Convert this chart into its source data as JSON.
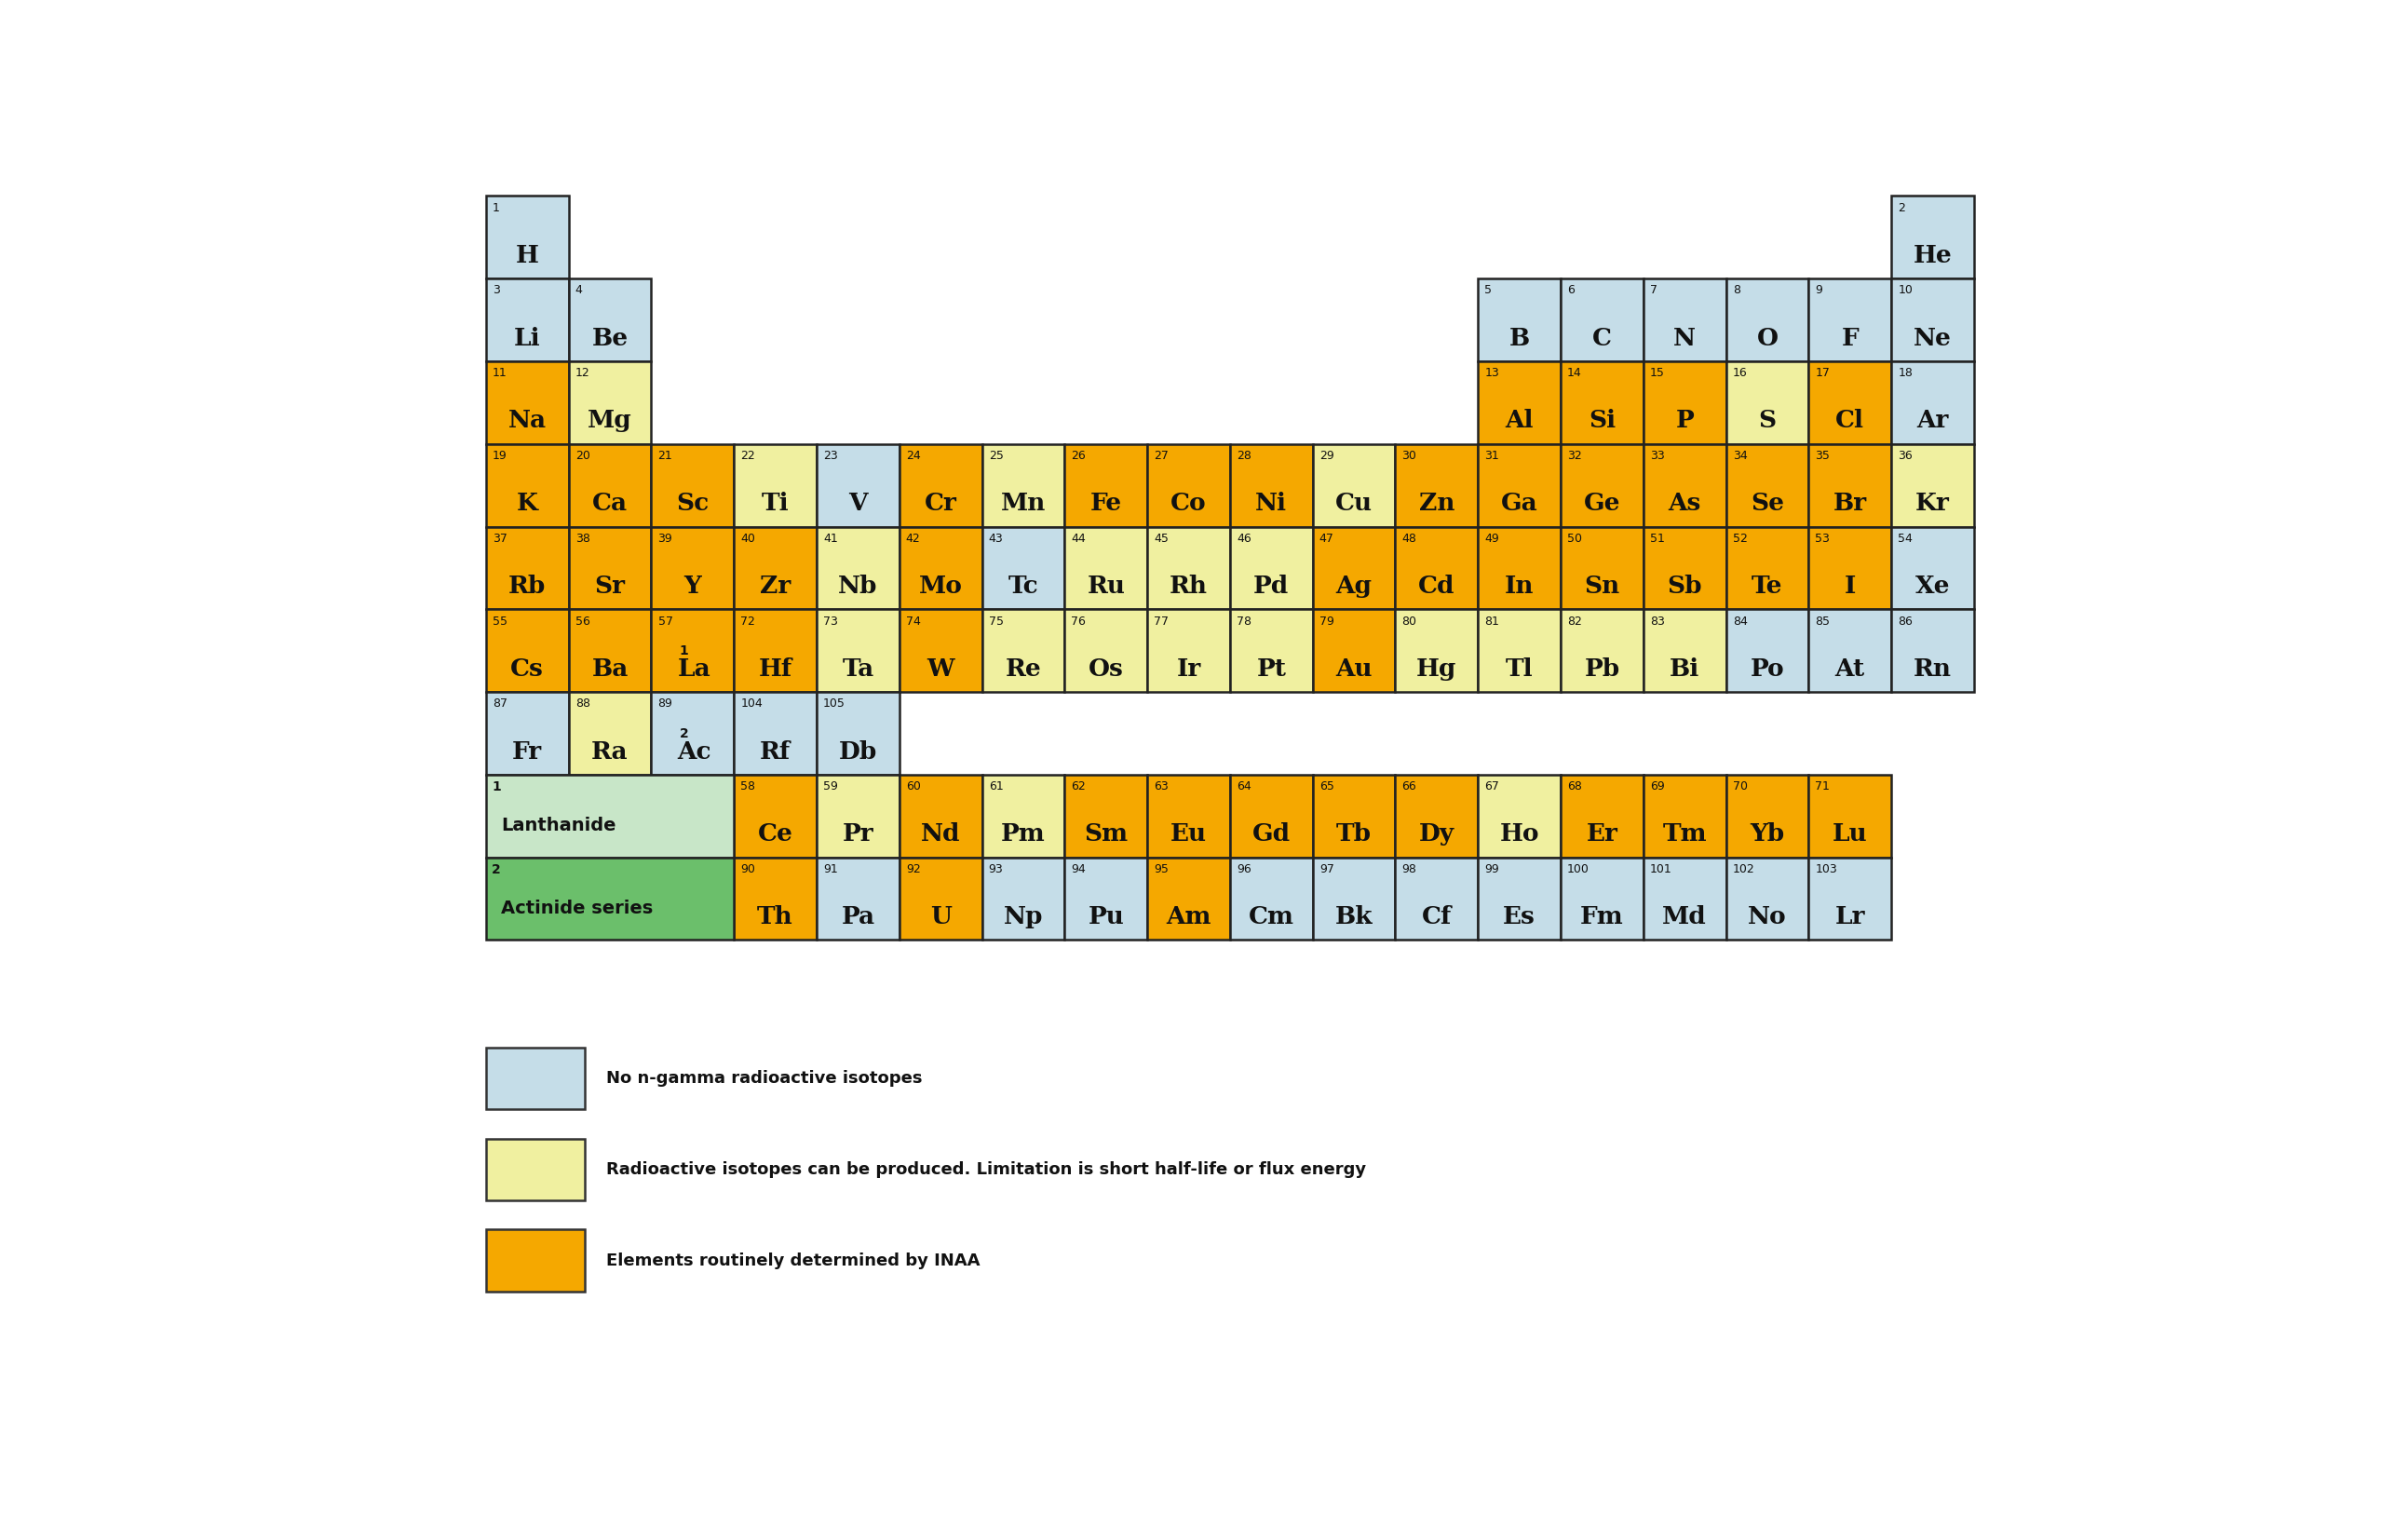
{
  "colors": {
    "blue": "#c5dde8",
    "light_yellow": "#f0f0a0",
    "orange": "#f5a800",
    "green_light": "#c8e6c8",
    "green_dark": "#6bbf6b",
    "white": "#ffffff",
    "border": "#333333"
  },
  "legend": [
    {
      "color_key": "blue",
      "text": "No n-gamma radioactive isotopes"
    },
    {
      "color_key": "light_yellow",
      "text": "Radioactive isotopes can be produced. Limitation is short half-life or flux energy"
    },
    {
      "color_key": "orange",
      "text": "Elements routinely determined by INAA"
    }
  ],
  "elements": [
    {
      "num": "1",
      "sym": "H",
      "row": 0,
      "col": 0,
      "color": "blue"
    },
    {
      "num": "2",
      "sym": "He",
      "row": 0,
      "col": 17,
      "color": "blue"
    },
    {
      "num": "3",
      "sym": "Li",
      "row": 1,
      "col": 0,
      "color": "blue"
    },
    {
      "num": "4",
      "sym": "Be",
      "row": 1,
      "col": 1,
      "color": "blue"
    },
    {
      "num": "5",
      "sym": "B",
      "row": 1,
      "col": 12,
      "color": "blue"
    },
    {
      "num": "6",
      "sym": "C",
      "row": 1,
      "col": 13,
      "color": "blue"
    },
    {
      "num": "7",
      "sym": "N",
      "row": 1,
      "col": 14,
      "color": "blue"
    },
    {
      "num": "8",
      "sym": "O",
      "row": 1,
      "col": 15,
      "color": "blue"
    },
    {
      "num": "9",
      "sym": "F",
      "row": 1,
      "col": 16,
      "color": "blue"
    },
    {
      "num": "10",
      "sym": "Ne",
      "row": 1,
      "col": 17,
      "color": "blue"
    },
    {
      "num": "11",
      "sym": "Na",
      "row": 2,
      "col": 0,
      "color": "orange"
    },
    {
      "num": "12",
      "sym": "Mg",
      "row": 2,
      "col": 1,
      "color": "light_yellow"
    },
    {
      "num": "13",
      "sym": "Al",
      "row": 2,
      "col": 12,
      "color": "orange"
    },
    {
      "num": "14",
      "sym": "Si",
      "row": 2,
      "col": 13,
      "color": "orange"
    },
    {
      "num": "15",
      "sym": "P",
      "row": 2,
      "col": 14,
      "color": "orange"
    },
    {
      "num": "16",
      "sym": "S",
      "row": 2,
      "col": 15,
      "color": "light_yellow"
    },
    {
      "num": "17",
      "sym": "Cl",
      "row": 2,
      "col": 16,
      "color": "orange"
    },
    {
      "num": "18",
      "sym": "Ar",
      "row": 2,
      "col": 17,
      "color": "blue"
    },
    {
      "num": "19",
      "sym": "K",
      "row": 3,
      "col": 0,
      "color": "orange"
    },
    {
      "num": "20",
      "sym": "Ca",
      "row": 3,
      "col": 1,
      "color": "orange"
    },
    {
      "num": "21",
      "sym": "Sc",
      "row": 3,
      "col": 2,
      "color": "orange"
    },
    {
      "num": "22",
      "sym": "Ti",
      "row": 3,
      "col": 3,
      "color": "light_yellow"
    },
    {
      "num": "23",
      "sym": "V",
      "row": 3,
      "col": 4,
      "color": "blue"
    },
    {
      "num": "24",
      "sym": "Cr",
      "row": 3,
      "col": 5,
      "color": "orange"
    },
    {
      "num": "25",
      "sym": "Mn",
      "row": 3,
      "col": 6,
      "color": "light_yellow"
    },
    {
      "num": "26",
      "sym": "Fe",
      "row": 3,
      "col": 7,
      "color": "orange"
    },
    {
      "num": "27",
      "sym": "Co",
      "row": 3,
      "col": 8,
      "color": "orange"
    },
    {
      "num": "28",
      "sym": "Ni",
      "row": 3,
      "col": 9,
      "color": "orange"
    },
    {
      "num": "29",
      "sym": "Cu",
      "row": 3,
      "col": 10,
      "color": "light_yellow"
    },
    {
      "num": "30",
      "sym": "Zn",
      "row": 3,
      "col": 11,
      "color": "orange"
    },
    {
      "num": "31",
      "sym": "Ga",
      "row": 3,
      "col": 12,
      "color": "orange"
    },
    {
      "num": "32",
      "sym": "Ge",
      "row": 3,
      "col": 13,
      "color": "orange"
    },
    {
      "num": "33",
      "sym": "As",
      "row": 3,
      "col": 14,
      "color": "orange"
    },
    {
      "num": "34",
      "sym": "Se",
      "row": 3,
      "col": 15,
      "color": "orange"
    },
    {
      "num": "35",
      "sym": "Br",
      "row": 3,
      "col": 16,
      "color": "orange"
    },
    {
      "num": "36",
      "sym": "Kr",
      "row": 3,
      "col": 17,
      "color": "light_yellow"
    },
    {
      "num": "37",
      "sym": "Rb",
      "row": 4,
      "col": 0,
      "color": "orange"
    },
    {
      "num": "38",
      "sym": "Sr",
      "row": 4,
      "col": 1,
      "color": "orange"
    },
    {
      "num": "39",
      "sym": "Y",
      "row": 4,
      "col": 2,
      "color": "orange"
    },
    {
      "num": "40",
      "sym": "Zr",
      "row": 4,
      "col": 3,
      "color": "orange"
    },
    {
      "num": "41",
      "sym": "Nb",
      "row": 4,
      "col": 4,
      "color": "light_yellow"
    },
    {
      "num": "42",
      "sym": "Mo",
      "row": 4,
      "col": 5,
      "color": "orange"
    },
    {
      "num": "43",
      "sym": "Tc",
      "row": 4,
      "col": 6,
      "color": "blue"
    },
    {
      "num": "44",
      "sym": "Ru",
      "row": 4,
      "col": 7,
      "color": "light_yellow"
    },
    {
      "num": "45",
      "sym": "Rh",
      "row": 4,
      "col": 8,
      "color": "light_yellow"
    },
    {
      "num": "46",
      "sym": "Pd",
      "row": 4,
      "col": 9,
      "color": "light_yellow"
    },
    {
      "num": "47",
      "sym": "Ag",
      "row": 4,
      "col": 10,
      "color": "orange"
    },
    {
      "num": "48",
      "sym": "Cd",
      "row": 4,
      "col": 11,
      "color": "orange"
    },
    {
      "num": "49",
      "sym": "In",
      "row": 4,
      "col": 12,
      "color": "orange"
    },
    {
      "num": "50",
      "sym": "Sn",
      "row": 4,
      "col": 13,
      "color": "orange"
    },
    {
      "num": "51",
      "sym": "Sb",
      "row": 4,
      "col": 14,
      "color": "orange"
    },
    {
      "num": "52",
      "sym": "Te",
      "row": 4,
      "col": 15,
      "color": "orange"
    },
    {
      "num": "53",
      "sym": "I",
      "row": 4,
      "col": 16,
      "color": "orange"
    },
    {
      "num": "54",
      "sym": "Xe",
      "row": 4,
      "col": 17,
      "color": "blue"
    },
    {
      "num": "55",
      "sym": "Cs",
      "row": 5,
      "col": 0,
      "color": "orange"
    },
    {
      "num": "56",
      "sym": "Ba",
      "row": 5,
      "col": 1,
      "color": "orange"
    },
    {
      "num": "57",
      "sym": "La",
      "row": 5,
      "col": 2,
      "color": "orange",
      "super": "1"
    },
    {
      "num": "72",
      "sym": "Hf",
      "row": 5,
      "col": 3,
      "color": "orange"
    },
    {
      "num": "73",
      "sym": "Ta",
      "row": 5,
      "col": 4,
      "color": "light_yellow"
    },
    {
      "num": "74",
      "sym": "W",
      "row": 5,
      "col": 5,
      "color": "orange"
    },
    {
      "num": "75",
      "sym": "Re",
      "row": 5,
      "col": 6,
      "color": "light_yellow"
    },
    {
      "num": "76",
      "sym": "Os",
      "row": 5,
      "col": 7,
      "color": "light_yellow"
    },
    {
      "num": "77",
      "sym": "Ir",
      "row": 5,
      "col": 8,
      "color": "light_yellow"
    },
    {
      "num": "78",
      "sym": "Pt",
      "row": 5,
      "col": 9,
      "color": "light_yellow"
    },
    {
      "num": "79",
      "sym": "Au",
      "row": 5,
      "col": 10,
      "color": "orange"
    },
    {
      "num": "80",
      "sym": "Hg",
      "row": 5,
      "col": 11,
      "color": "light_yellow"
    },
    {
      "num": "81",
      "sym": "Tl",
      "row": 5,
      "col": 12,
      "color": "light_yellow"
    },
    {
      "num": "82",
      "sym": "Pb",
      "row": 5,
      "col": 13,
      "color": "light_yellow"
    },
    {
      "num": "83",
      "sym": "Bi",
      "row": 5,
      "col": 14,
      "color": "light_yellow"
    },
    {
      "num": "84",
      "sym": "Po",
      "row": 5,
      "col": 15,
      "color": "blue"
    },
    {
      "num": "85",
      "sym": "At",
      "row": 5,
      "col": 16,
      "color": "blue"
    },
    {
      "num": "86",
      "sym": "Rn",
      "row": 5,
      "col": 17,
      "color": "blue"
    },
    {
      "num": "87",
      "sym": "Fr",
      "row": 6,
      "col": 0,
      "color": "blue"
    },
    {
      "num": "88",
      "sym": "Ra",
      "row": 6,
      "col": 1,
      "color": "light_yellow"
    },
    {
      "num": "89",
      "sym": "Ac",
      "row": 6,
      "col": 2,
      "color": "blue",
      "super": "2"
    },
    {
      "num": "104",
      "sym": "Rf",
      "row": 6,
      "col": 3,
      "color": "blue"
    },
    {
      "num": "105",
      "sym": "Db",
      "row": 6,
      "col": 4,
      "color": "blue"
    },
    {
      "num": "58",
      "sym": "Ce",
      "row": 8,
      "col": 3,
      "color": "orange"
    },
    {
      "num": "59",
      "sym": "Pr",
      "row": 8,
      "col": 4,
      "color": "light_yellow"
    },
    {
      "num": "60",
      "sym": "Nd",
      "row": 8,
      "col": 5,
      "color": "orange"
    },
    {
      "num": "61",
      "sym": "Pm",
      "row": 8,
      "col": 6,
      "color": "light_yellow"
    },
    {
      "num": "62",
      "sym": "Sm",
      "row": 8,
      "col": 7,
      "color": "orange"
    },
    {
      "num": "63",
      "sym": "Eu",
      "row": 8,
      "col": 8,
      "color": "orange"
    },
    {
      "num": "64",
      "sym": "Gd",
      "row": 8,
      "col": 9,
      "color": "orange"
    },
    {
      "num": "65",
      "sym": "Tb",
      "row": 8,
      "col": 10,
      "color": "orange"
    },
    {
      "num": "66",
      "sym": "Dy",
      "row": 8,
      "col": 11,
      "color": "orange"
    },
    {
      "num": "67",
      "sym": "Ho",
      "row": 8,
      "col": 12,
      "color": "light_yellow"
    },
    {
      "num": "68",
      "sym": "Er",
      "row": 8,
      "col": 13,
      "color": "orange"
    },
    {
      "num": "69",
      "sym": "Tm",
      "row": 8,
      "col": 14,
      "color": "orange"
    },
    {
      "num": "70",
      "sym": "Yb",
      "row": 8,
      "col": 15,
      "color": "orange"
    },
    {
      "num": "71",
      "sym": "Lu",
      "row": 8,
      "col": 16,
      "color": "orange"
    },
    {
      "num": "90",
      "sym": "Th",
      "row": 9,
      "col": 3,
      "color": "orange"
    },
    {
      "num": "91",
      "sym": "Pa",
      "row": 9,
      "col": 4,
      "color": "blue"
    },
    {
      "num": "92",
      "sym": "U",
      "row": 9,
      "col": 5,
      "color": "orange"
    },
    {
      "num": "93",
      "sym": "Np",
      "row": 9,
      "col": 6,
      "color": "blue"
    },
    {
      "num": "94",
      "sym": "Pu",
      "row": 9,
      "col": 7,
      "color": "blue"
    },
    {
      "num": "95",
      "sym": "Am",
      "row": 9,
      "col": 8,
      "color": "orange"
    },
    {
      "num": "96",
      "sym": "Cm",
      "row": 9,
      "col": 9,
      "color": "blue"
    },
    {
      "num": "97",
      "sym": "Bk",
      "row": 9,
      "col": 10,
      "color": "blue"
    },
    {
      "num": "98",
      "sym": "Cf",
      "row": 9,
      "col": 11,
      "color": "blue"
    },
    {
      "num": "99",
      "sym": "Es",
      "row": 9,
      "col": 12,
      "color": "blue"
    },
    {
      "num": "100",
      "sym": "Fm",
      "row": 9,
      "col": 13,
      "color": "blue"
    },
    {
      "num": "101",
      "sym": "Md",
      "row": 9,
      "col": 14,
      "color": "blue"
    },
    {
      "num": "102",
      "sym": "No",
      "row": 9,
      "col": 15,
      "color": "blue"
    },
    {
      "num": "103",
      "sym": "Lr",
      "row": 9,
      "col": 16,
      "color": "blue"
    }
  ]
}
